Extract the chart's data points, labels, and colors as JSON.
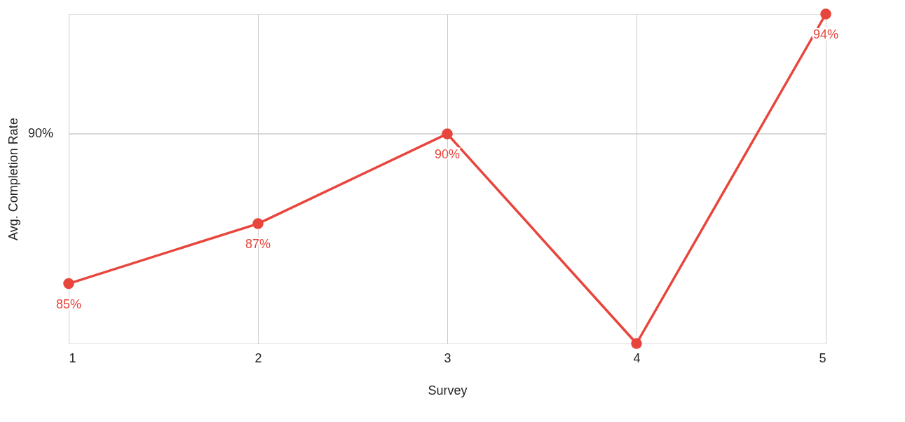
{
  "chart_data": {
    "type": "line",
    "xlabel": "Survey",
    "ylabel": "Avg. Completion Rate",
    "x": [
      1,
      2,
      3,
      4,
      5
    ],
    "series": [
      {
        "color": "#e8453c",
        "values": [
          85,
          87,
          90,
          83,
          94
        ],
        "value_labels": [
          "85%",
          "87%",
          "90%",
          null,
          "94%"
        ]
      }
    ],
    "xlim": [
      1,
      5
    ],
    "xticks": [
      1,
      2,
      3,
      4,
      5
    ],
    "ylim": [
      83,
      94
    ],
    "ref_lines": [
      {
        "axis": "y",
        "value": 90,
        "label": "90%",
        "color": "#cccccc"
      }
    ],
    "grid": "x",
    "marker": "circle",
    "line_style": "solid"
  }
}
